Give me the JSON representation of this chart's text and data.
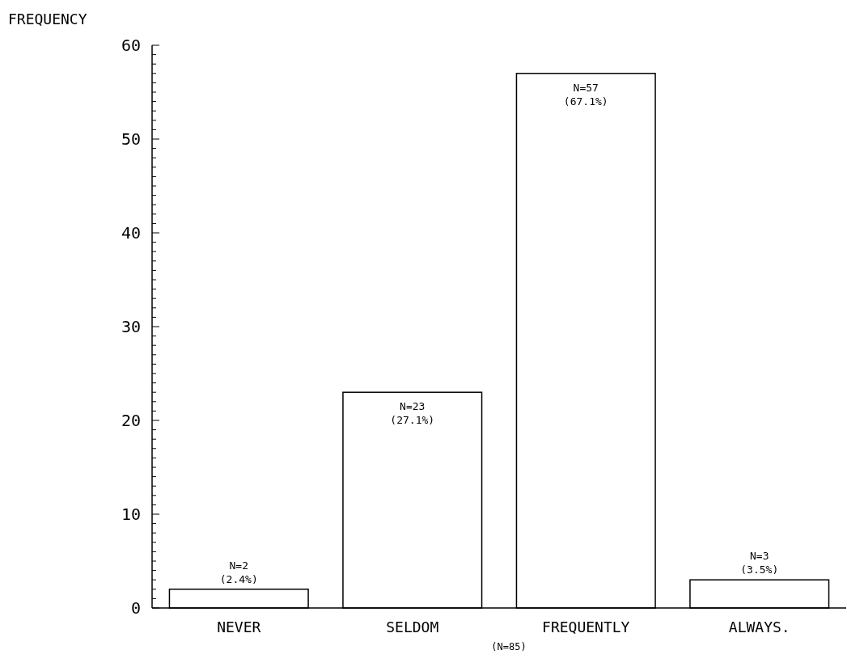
{
  "chart_data": {
    "type": "bar",
    "ylabel": "FREQUENCY",
    "categories": [
      "NEVER",
      "SELDOM",
      "FREQUENTLY",
      "ALWAYS."
    ],
    "values": [
      2,
      23,
      57,
      3
    ],
    "color": "#ffffff",
    "value_labels": [
      "N=2\n(2.4%)",
      "N=23\n(27.1%)",
      "N=57\n(67.1%)",
      "N=3\n(3.5%)"
    ],
    "annotations": [
      "(N=85)"
    ],
    "ylim": [
      0,
      60
    ],
    "yticks": [
      0,
      {
        "value": 1,
        "label": null
      },
      {
        "value": 2,
        "label": null
      },
      {
        "value": 3,
        "label": null
      },
      {
        "value": 4,
        "label": null
      },
      {
        "value": 5,
        "label": null
      },
      {
        "value": 6,
        "label": null
      },
      {
        "value": 7,
        "label": null
      },
      {
        "value": 8,
        "label": null
      },
      {
        "value": 9,
        "label": null
      },
      10,
      {
        "value": 11,
        "label": null
      },
      {
        "value": 12,
        "label": null
      },
      {
        "value": 13,
        "label": null
      },
      {
        "value": 14,
        "label": null
      },
      {
        "value": 15,
        "label": null
      },
      {
        "value": 16,
        "label": null
      },
      {
        "value": 17,
        "label": null
      },
      {
        "value": 18,
        "label": null
      },
      {
        "value": 19,
        "label": null
      },
      20,
      {
        "value": 21,
        "label": null
      },
      {
        "value": 22,
        "label": null
      },
      {
        "value": 23,
        "label": null
      },
      {
        "value": 24,
        "label": null
      },
      {
        "value": 25,
        "label": null
      },
      {
        "value": 26,
        "label": null
      },
      {
        "value": 27,
        "label": null
      },
      {
        "value": 28,
        "label": null
      },
      {
        "value": 29,
        "label": null
      },
      30,
      {
        "value": 31,
        "label": null
      },
      {
        "value": 32,
        "label": null
      },
      {
        "value": 33,
        "label": null
      },
      {
        "value": 34,
        "label": null
      },
      {
        "value": 35,
        "label": null
      },
      {
        "value": 36,
        "label": null
      },
      {
        "value": 37,
        "label": null
      },
      {
        "value": 38,
        "label": null
      },
      {
        "value": 39,
        "label": null
      },
      40,
      {
        "value": 41,
        "label": null
      },
      {
        "value": 42,
        "label": null
      },
      {
        "value": 43,
        "label": null
      },
      {
        "value": 44,
        "label": null
      },
      {
        "value": 45,
        "label": null
      },
      {
        "value": 46,
        "label": null
      },
      {
        "value": 47,
        "label": null
      },
      {
        "value": 48,
        "label": null
      },
      {
        "value": 49,
        "label": null
      },
      50,
      {
        "value": 51,
        "label": null
      },
      {
        "value": 52,
        "label": null
      },
      {
        "value": 53,
        "label": null
      },
      {
        "value": 54,
        "label": null
      },
      {
        "value": 55,
        "label": null
      },
      {
        "value": 56,
        "label": null
      },
      {
        "value": 57,
        "label": null
      },
      {
        "value": 58,
        "label": null
      },
      {
        "value": 59,
        "label": null
      },
      60
    ],
    "tick_labels": "y"
  }
}
